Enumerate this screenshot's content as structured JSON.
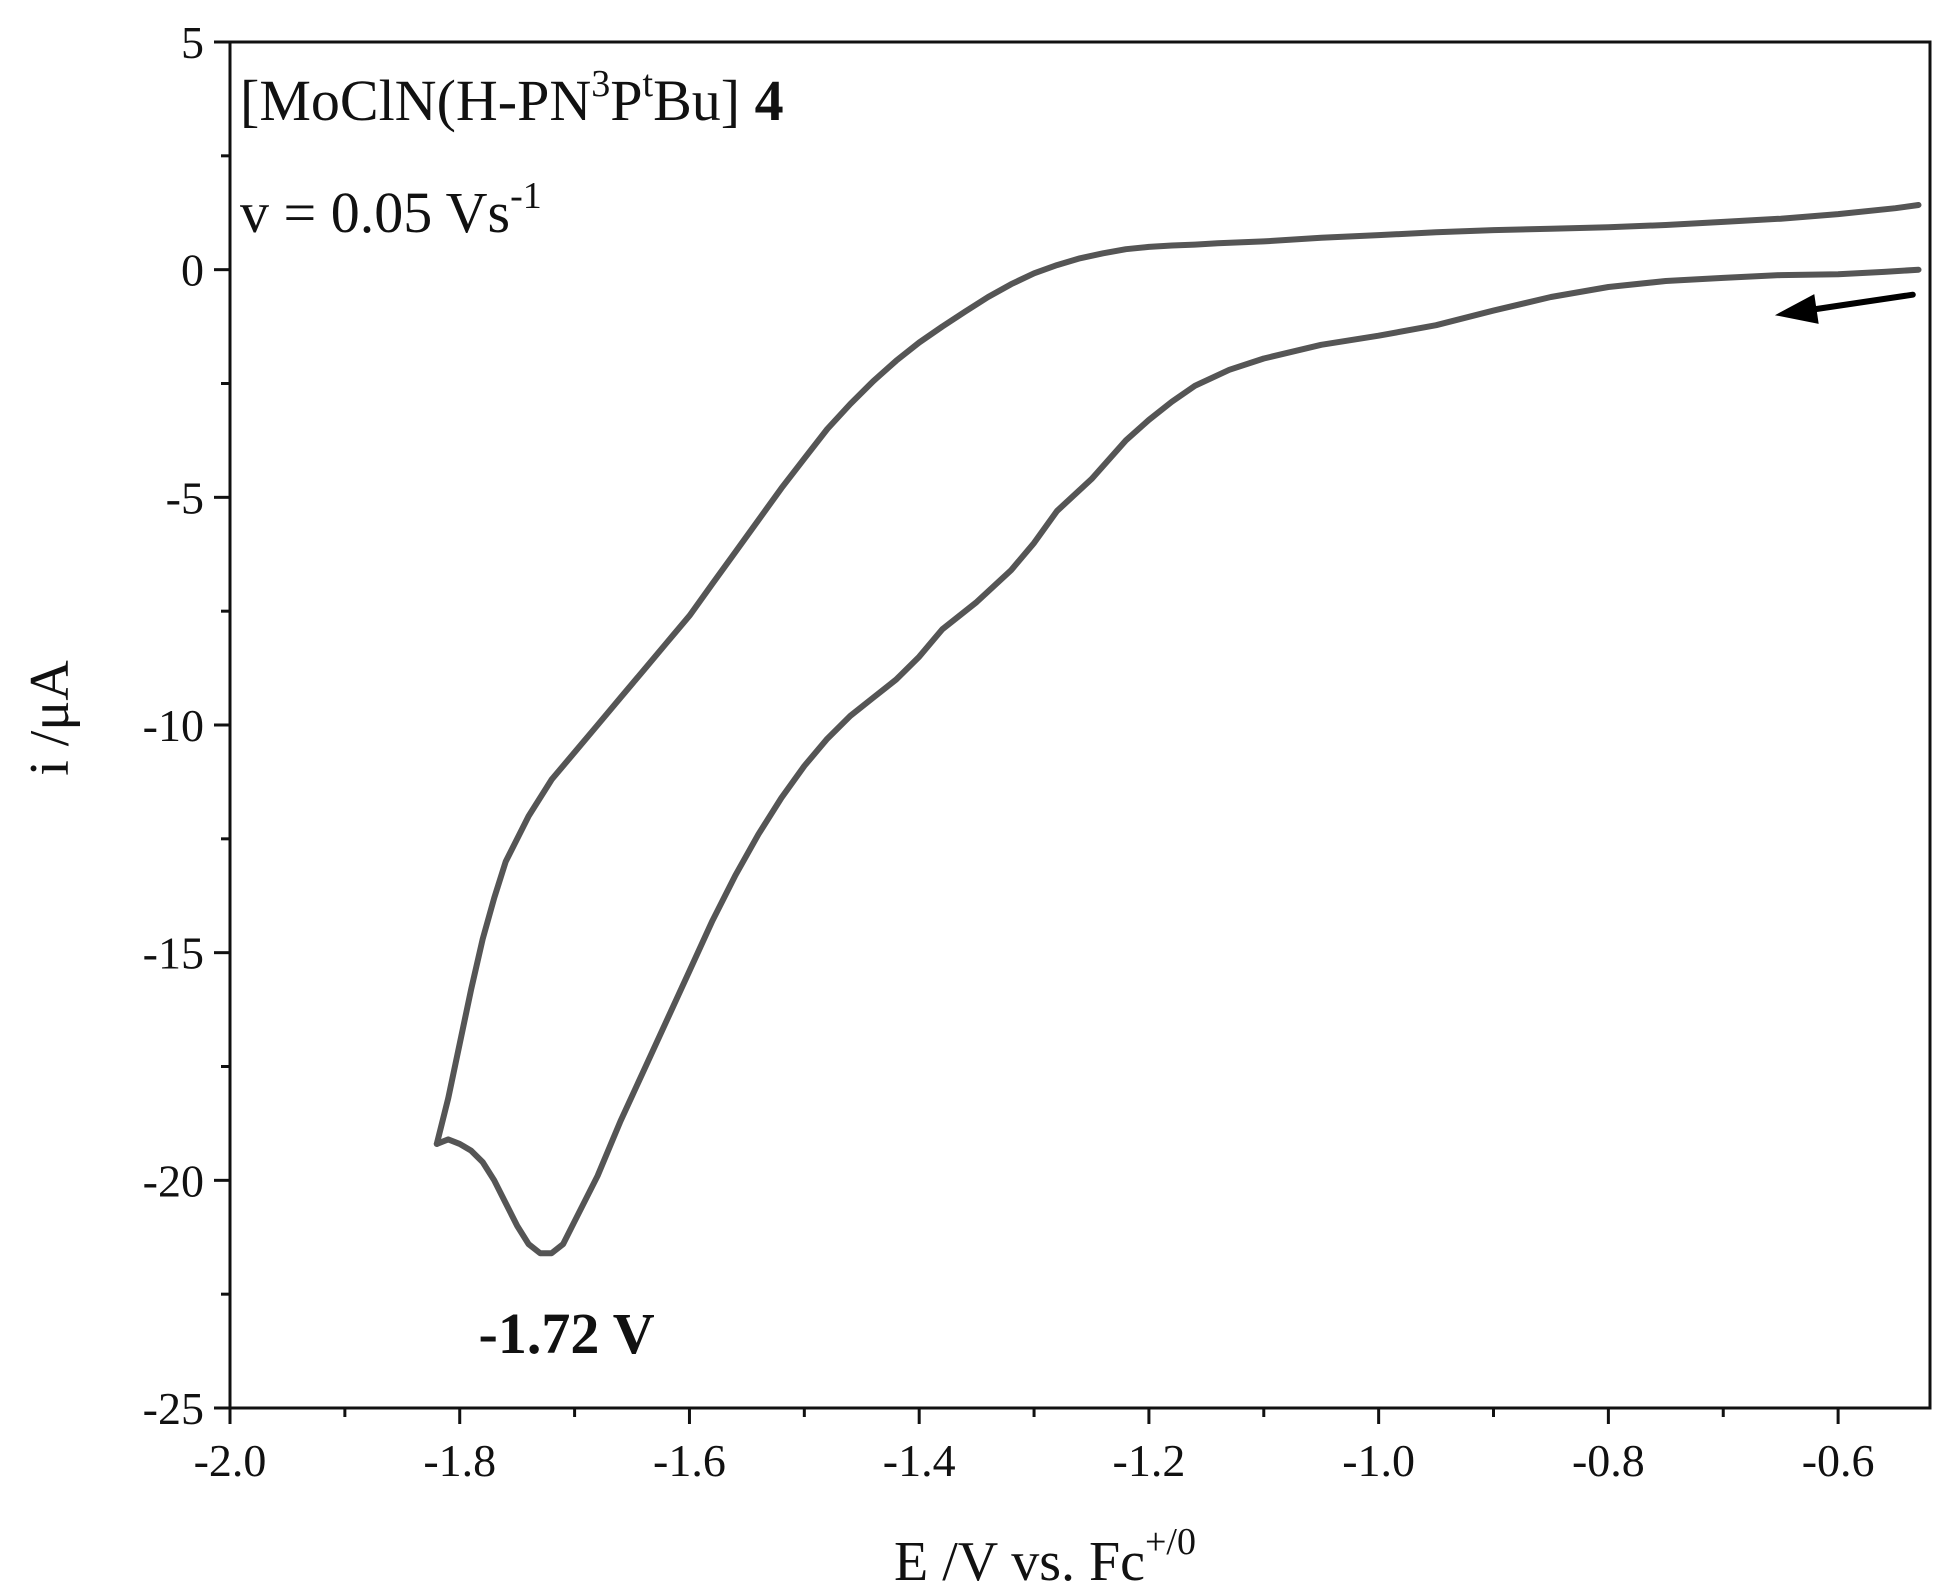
{
  "chart_data": {
    "type": "line",
    "title_line": {
      "pre": "[MoClN(H-PN",
      "sup1": "3",
      "mid": "P",
      "sup2": "t",
      "post": "Bu]",
      "bold": "4"
    },
    "scan_rate": {
      "text": "v = 0.05 Vs",
      "sup": "-1"
    },
    "xlabel": {
      "text": "E /V vs. Fc",
      "sup": "+/0"
    },
    "ylabel": "i /μA",
    "xlim": [
      -2.0,
      -0.52
    ],
    "ylim": [
      -25,
      5
    ],
    "x_ticks": [
      {
        "value": -2.0,
        "label": "-2.0"
      },
      {
        "value": -1.8,
        "label": "-1.8"
      },
      {
        "value": -1.6,
        "label": "-1.6"
      },
      {
        "value": -1.4,
        "label": "-1.4"
      },
      {
        "value": -1.2,
        "label": "-1.2"
      },
      {
        "value": -1.0,
        "label": "-1.0"
      },
      {
        "value": -0.8,
        "label": "-0.8"
      },
      {
        "value": -0.6,
        "label": "-0.6"
      }
    ],
    "x_minor_ticks": [
      -1.9,
      -1.7,
      -1.5,
      -1.3,
      -1.1,
      -0.9,
      -0.7
    ],
    "y_ticks": [
      {
        "value": 5,
        "label": "5"
      },
      {
        "value": 0,
        "label": "0"
      },
      {
        "value": -5,
        "label": "-5"
      },
      {
        "value": -10,
        "label": "-10"
      },
      {
        "value": -15,
        "label": "-15"
      },
      {
        "value": -20,
        "label": "-20"
      },
      {
        "value": -25,
        "label": "-25"
      }
    ],
    "y_minor_ticks": [
      2.5,
      -2.5,
      -7.5,
      -12.5,
      -17.5,
      -22.5
    ],
    "peak_label": {
      "text": "-1.72 V",
      "x": -1.72,
      "y": -21.6
    },
    "arrow": {
      "from": [
        -0.535,
        -0.55
      ],
      "to": [
        -0.655,
        -1.0
      ]
    },
    "colors": {
      "curve": "#555555",
      "axis": "#111111",
      "arrow": "#000000"
    },
    "series": [
      {
        "x": [
          -0.53,
          -0.56,
          -0.6,
          -0.65,
          -0.7,
          -0.75,
          -0.8,
          -0.85,
          -0.9,
          -0.95,
          -1.0,
          -1.05,
          -1.1,
          -1.13,
          -1.16,
          -1.18,
          -1.2,
          -1.22,
          -1.25,
          -1.28,
          -1.3,
          -1.32,
          -1.35,
          -1.38,
          -1.4,
          -1.42,
          -1.44,
          -1.46,
          -1.48,
          -1.5,
          -1.52,
          -1.54,
          -1.56,
          -1.58,
          -1.6,
          -1.62,
          -1.64,
          -1.66,
          -1.68,
          -1.7,
          -1.71,
          -1.72,
          -1.73,
          -1.74,
          -1.75,
          -1.76,
          -1.77,
          -1.78,
          -1.79,
          -1.8,
          -1.81,
          -1.82
        ],
        "y": [
          0.0,
          -0.05,
          -0.1,
          -0.12,
          -0.18,
          -0.25,
          -0.38,
          -0.6,
          -0.9,
          -1.22,
          -1.45,
          -1.65,
          -1.95,
          -2.2,
          -2.55,
          -2.9,
          -3.3,
          -3.75,
          -4.6,
          -5.3,
          -6.0,
          -6.6,
          -7.3,
          -7.9,
          -8.5,
          -9.0,
          -9.4,
          -9.8,
          -10.3,
          -10.9,
          -11.6,
          -12.4,
          -13.3,
          -14.3,
          -15.4,
          -16.5,
          -17.6,
          -18.7,
          -19.9,
          -20.9,
          -21.4,
          -21.6,
          -21.6,
          -21.4,
          -21.0,
          -20.5,
          -20.0,
          -19.6,
          -19.35,
          -19.2,
          -19.1,
          -19.2
        ]
      },
      {
        "x": [
          -1.82,
          -1.81,
          -1.8,
          -1.79,
          -1.78,
          -1.77,
          -1.76,
          -1.74,
          -1.72,
          -1.7,
          -1.68,
          -1.66,
          -1.64,
          -1.62,
          -1.6,
          -1.58,
          -1.56,
          -1.54,
          -1.52,
          -1.5,
          -1.48,
          -1.46,
          -1.44,
          -1.42,
          -1.4,
          -1.38,
          -1.36,
          -1.34,
          -1.32,
          -1.3,
          -1.28,
          -1.26,
          -1.24,
          -1.22,
          -1.2,
          -1.18,
          -1.16,
          -1.14,
          -1.1,
          -1.05,
          -1.0,
          -0.95,
          -0.9,
          -0.85,
          -0.8,
          -0.75,
          -0.7,
          -0.65,
          -0.6,
          -0.55,
          -0.53
        ],
        "y": [
          -19.2,
          -18.2,
          -17.0,
          -15.8,
          -14.7,
          -13.8,
          -13.0,
          -12.0,
          -11.2,
          -10.6,
          -10.0,
          -9.4,
          -8.8,
          -8.2,
          -7.6,
          -6.9,
          -6.2,
          -5.5,
          -4.8,
          -4.15,
          -3.5,
          -2.95,
          -2.45,
          -2.0,
          -1.6,
          -1.25,
          -0.92,
          -0.6,
          -0.32,
          -0.08,
          0.1,
          0.25,
          0.36,
          0.45,
          0.5,
          0.53,
          0.55,
          0.58,
          0.62,
          0.7,
          0.76,
          0.82,
          0.87,
          0.9,
          0.93,
          0.98,
          1.05,
          1.12,
          1.22,
          1.35,
          1.42
        ]
      }
    ]
  }
}
